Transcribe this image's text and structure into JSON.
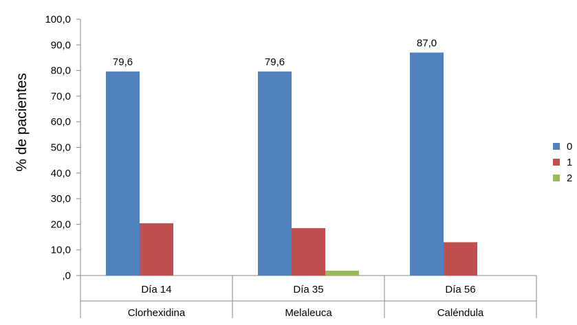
{
  "chart_data": {
    "type": "bar",
    "ylabel": "% de pacientes",
    "ylim": [
      0,
      100
    ],
    "yticks": [
      ",0",
      "10,0",
      "20,0",
      "30,0",
      "40,0",
      "50,0",
      "60,0",
      "70,0",
      "80,0",
      "90,0",
      "100,0"
    ],
    "categories": [
      {
        "day": "Día 14",
        "treatment": "Clorhexidina"
      },
      {
        "day": "Día 35",
        "treatment": "Melaleuca"
      },
      {
        "day": "Día 56",
        "treatment": "Caléndula"
      }
    ],
    "series": [
      {
        "name": "0",
        "color": "#4F81BD",
        "values": [
          79.6,
          79.6,
          87.0
        ],
        "labels": [
          "79,6",
          "79,6",
          "87,0"
        ]
      },
      {
        "name": "1",
        "color": "#C0504D",
        "values": [
          20.4,
          18.5,
          13.0
        ],
        "labels": [
          null,
          null,
          null
        ]
      },
      {
        "name": "2",
        "color": "#9BBB59",
        "values": [
          0,
          1.9,
          0
        ],
        "labels": [
          null,
          null,
          null
        ]
      }
    ],
    "legend_position": "right",
    "grid": false
  }
}
